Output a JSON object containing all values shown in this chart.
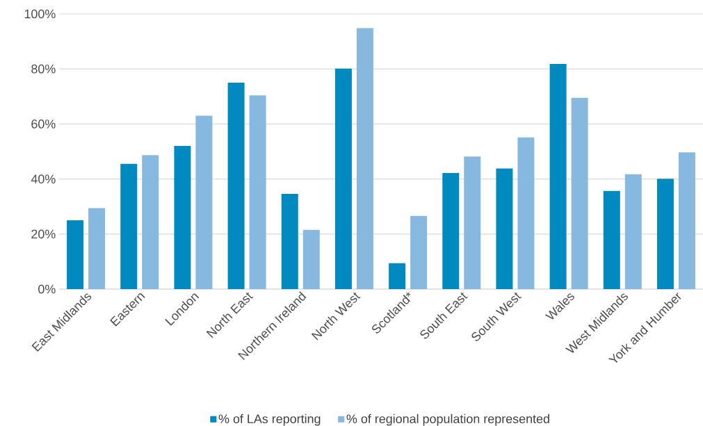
{
  "chart_data": {
    "type": "bar",
    "categories": [
      "East Midlands",
      "Eastern",
      "London",
      "North East",
      "Northern Ireland",
      "North West",
      "Scotland*",
      "South East",
      "South West",
      "Wales",
      "West Midlands",
      "York and Humber"
    ],
    "series": [
      {
        "name": "% of LAs reporting",
        "color": "#008ac0",
        "values": [
          25.0,
          45.5,
          52.0,
          75.0,
          34.6,
          80.1,
          9.4,
          42.2,
          43.8,
          81.8,
          35.7,
          40.1
        ]
      },
      {
        "name": "% of regional population represented",
        "color": "#87b8e0",
        "values": [
          29.4,
          48.7,
          63.0,
          70.4,
          21.5,
          94.8,
          26.6,
          48.2,
          55.1,
          69.5,
          41.7,
          49.7
        ]
      }
    ],
    "ylim": [
      0,
      100
    ],
    "yticks": [
      {
        "value": 0,
        "label": "0%"
      },
      {
        "value": 20,
        "label": "20%"
      },
      {
        "value": 40,
        "label": "40%"
      },
      {
        "value": 60,
        "label": "60%"
      },
      {
        "value": 80,
        "label": "80%"
      },
      {
        "value": 100,
        "label": "100%"
      }
    ],
    "grid": "y",
    "legend": "bottom"
  }
}
